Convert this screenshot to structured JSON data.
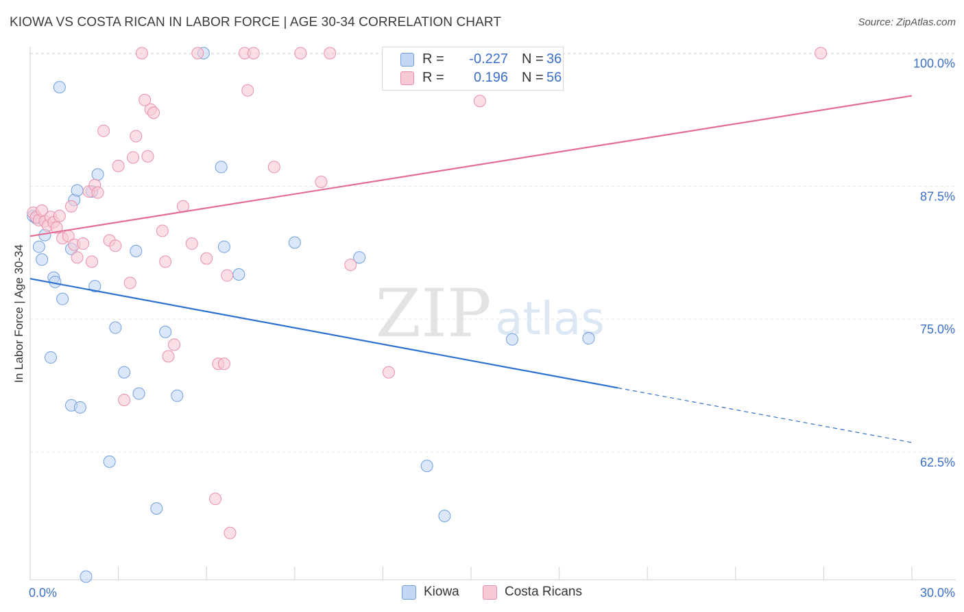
{
  "header": {
    "title": "KIOWA VS COSTA RICAN IN LABOR FORCE | AGE 30-34 CORRELATION CHART",
    "source": "Source: ZipAtlas.com"
  },
  "watermark": {
    "zip": "ZIP",
    "atlas": "atlas"
  },
  "legend": {
    "r_label": "R =",
    "n_label": "N =",
    "rows": [
      {
        "series": "Kiowa",
        "r": "-0.227",
        "n": "36"
      },
      {
        "series": "Costa Ricans",
        "r": "0.196",
        "n": "56"
      }
    ]
  },
  "bottom_legend": [
    "Kiowa",
    "Costa Ricans"
  ],
  "colors": {
    "kiowa_fill": "#c4d8f5",
    "kiowa_stroke": "#6f9ee0",
    "kiowa_line": "#2c6fd1",
    "costa_fill": "#f8c9d6",
    "costa_stroke": "#e98eaa",
    "costa_line": "#e36b95",
    "tick_label": "#3b6fc9",
    "grid": "#e2e2e2"
  },
  "chart_data": {
    "type": "scatter",
    "title": "KIOWA VS COSTA RICAN IN LABOR FORCE | AGE 30-34 CORRELATION CHART",
    "xlabel": "",
    "ylabel": "In Labor Force | Age 30-34",
    "xlim": [
      0,
      30
    ],
    "ylim": [
      50.5,
      101
    ],
    "x_tick_labels": [
      {
        "value": 0,
        "label": "0.0%"
      },
      {
        "value": 30,
        "label": "30.0%"
      }
    ],
    "y_ticks": [
      {
        "value": 100,
        "label": "100.0%"
      },
      {
        "value": 87.5,
        "label": "87.5%"
      },
      {
        "value": 75,
        "label": "75.0%"
      },
      {
        "value": 62.5,
        "label": "62.5%"
      }
    ],
    "grid": true,
    "legend_position": "top-center",
    "series": [
      {
        "name": "Kiowa",
        "r": -0.227,
        "n": 36,
        "trend": {
          "x0": 0,
          "y0": 78.8,
          "x1": 30,
          "y1": 63.4,
          "solid_until_x": 20
        },
        "points": [
          [
            0.1,
            84.7
          ],
          [
            0.2,
            84.5
          ],
          [
            0.3,
            81.8
          ],
          [
            0.4,
            80.6
          ],
          [
            0.5,
            82.9
          ],
          [
            0.7,
            71.4
          ],
          [
            0.8,
            78.9
          ],
          [
            0.85,
            78.5
          ],
          [
            1.0,
            96.8
          ],
          [
            1.1,
            76.9
          ],
          [
            1.4,
            81.6
          ],
          [
            1.4,
            66.9
          ],
          [
            1.5,
            86.2
          ],
          [
            1.6,
            87.1
          ],
          [
            1.7,
            66.7
          ],
          [
            1.9,
            50.8
          ],
          [
            2.1,
            87.0
          ],
          [
            2.2,
            78.1
          ],
          [
            2.3,
            88.6
          ],
          [
            2.7,
            61.6
          ],
          [
            2.9,
            74.2
          ],
          [
            3.2,
            70.0
          ],
          [
            3.6,
            81.4
          ],
          [
            3.7,
            68.0
          ],
          [
            4.3,
            57.2
          ],
          [
            4.6,
            73.8
          ],
          [
            5.0,
            67.8
          ],
          [
            5.9,
            100.0
          ],
          [
            6.5,
            89.3
          ],
          [
            6.6,
            81.8
          ],
          [
            7.1,
            79.2
          ],
          [
            9.0,
            82.2
          ],
          [
            11.2,
            80.8
          ],
          [
            13.5,
            61.2
          ],
          [
            14.1,
            56.5
          ],
          [
            16.4,
            73.1
          ],
          [
            19.0,
            73.2
          ]
        ]
      },
      {
        "name": "Costa Ricans",
        "r": 0.196,
        "n": 56,
        "trend": {
          "x0": 0,
          "y0": 82.8,
          "x1": 30,
          "y1": 96.0,
          "solid_until_x": 30
        },
        "points": [
          [
            0.1,
            85.0
          ],
          [
            0.2,
            84.6
          ],
          [
            0.3,
            84.3
          ],
          [
            0.4,
            85.2
          ],
          [
            0.5,
            84.2
          ],
          [
            0.6,
            83.8
          ],
          [
            0.7,
            84.6
          ],
          [
            0.8,
            84.1
          ],
          [
            0.9,
            83.6
          ],
          [
            1.0,
            84.7
          ],
          [
            1.1,
            82.6
          ],
          [
            1.3,
            82.8
          ],
          [
            1.4,
            85.6
          ],
          [
            1.5,
            82.0
          ],
          [
            1.6,
            80.8
          ],
          [
            1.8,
            82.1
          ],
          [
            2.0,
            87.0
          ],
          [
            2.1,
            80.4
          ],
          [
            2.2,
            87.6
          ],
          [
            2.3,
            86.9
          ],
          [
            2.5,
            92.7
          ],
          [
            2.7,
            82.4
          ],
          [
            2.9,
            81.9
          ],
          [
            3.0,
            89.4
          ],
          [
            3.2,
            67.4
          ],
          [
            3.4,
            78.4
          ],
          [
            3.5,
            90.2
          ],
          [
            3.6,
            92.2
          ],
          [
            3.8,
            100.0
          ],
          [
            3.9,
            95.6
          ],
          [
            4.0,
            90.3
          ],
          [
            4.1,
            94.7
          ],
          [
            4.2,
            94.4
          ],
          [
            4.5,
            83.3
          ],
          [
            4.6,
            80.4
          ],
          [
            4.7,
            71.5
          ],
          [
            4.9,
            72.6
          ],
          [
            5.2,
            85.6
          ],
          [
            5.5,
            82.1
          ],
          [
            5.7,
            100.0
          ],
          [
            6.0,
            80.7
          ],
          [
            6.3,
            58.1
          ],
          [
            6.4,
            70.8
          ],
          [
            6.6,
            70.8
          ],
          [
            6.7,
            79.1
          ],
          [
            6.8,
            54.9
          ],
          [
            7.3,
            100.0
          ],
          [
            7.4,
            96.5
          ],
          [
            7.6,
            100.0
          ],
          [
            8.3,
            89.3
          ],
          [
            9.2,
            100.0
          ],
          [
            9.9,
            87.9
          ],
          [
            10.2,
            100.0
          ],
          [
            10.9,
            80.1
          ],
          [
            12.2,
            70.0
          ],
          [
            15.3,
            95.5
          ],
          [
            26.9,
            100.0
          ]
        ]
      }
    ]
  }
}
